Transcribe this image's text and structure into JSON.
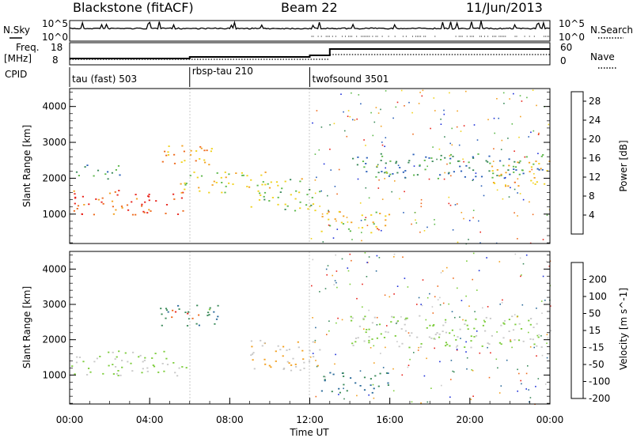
{
  "header": {
    "station": "Blackstone (fitACF)",
    "beam": "Beam 22",
    "date": "11/Jun/2013"
  },
  "strip_labels": {
    "nsky": "N.Sky",
    "nsky_tick_top": "10^5",
    "nsky_tick_bottom": "10^0",
    "nsearch": "N.Search",
    "nsearch_tick_top": "10^5",
    "nsearch_tick_bottom": "10^0",
    "freq_line1": "Freq.",
    "freq_line2": "[MHz]",
    "freq_tick_top": "18",
    "freq_tick_bottom": "8",
    "nave": "Nave",
    "nave_tick_top": "60",
    "nave_tick_bottom": "0",
    "cpid": "CPID"
  },
  "cpid_segments": [
    {
      "label": "tau (fast) 503",
      "start_hour": 0
    },
    {
      "label": "rbsp-tau 210",
      "start_hour": 6
    },
    {
      "label": "twofsound 3501",
      "start_hour": 12
    }
  ],
  "chart_data": [
    {
      "type": "heatmap",
      "title": "",
      "xlabel": "",
      "ylabel": "Slant Range [km]",
      "xlim": [
        "00:00",
        "24:00"
      ],
      "ylim": [
        180,
        4500
      ],
      "x_ticks": [
        "00:00",
        "04:00",
        "08:00",
        "12:00",
        "16:00",
        "20:00",
        "00:00"
      ],
      "y_ticks": [
        1000,
        2000,
        3000,
        4000
      ],
      "colorbar": {
        "label": "Power [dB]",
        "ticks": [
          4,
          8,
          12,
          16,
          20,
          24,
          28
        ],
        "range": [
          0,
          30
        ],
        "colors": [
          "#1a2cd8",
          "#2a5fb8",
          "#3b8a5a",
          "#5cb84a",
          "#f0d21c",
          "#f2a020",
          "#ee6a1c",
          "#e8221a"
        ]
      },
      "echo_bands": [
        {
          "t0": 0.0,
          "t1": 5.8,
          "r0": 1000,
          "r1": 1700,
          "power_db": 26
        },
        {
          "t0": 4.5,
          "t1": 7.5,
          "r0": 2400,
          "r1": 3000,
          "power_db": 20
        },
        {
          "t0": 0.2,
          "t1": 2.5,
          "r0": 2000,
          "r1": 2400,
          "power_db": 10
        },
        {
          "t0": 5.5,
          "t1": 10.0,
          "r0": 1600,
          "r1": 2200,
          "power_db": 16
        },
        {
          "t0": 9.0,
          "t1": 12.5,
          "r0": 1100,
          "r1": 2000,
          "power_db": 14
        },
        {
          "t0": 12.5,
          "t1": 16.0,
          "r0": 500,
          "r1": 1100,
          "power_db": 18
        },
        {
          "t0": 14.0,
          "t1": 24.0,
          "r0": 2000,
          "r1": 2700,
          "power_db": 9
        },
        {
          "t0": 21.0,
          "t1": 24.0,
          "r0": 1800,
          "r1": 2500,
          "power_db": 18
        }
      ]
    },
    {
      "type": "heatmap",
      "title": "",
      "xlabel": "Time UT",
      "ylabel": "Slant Range [km]",
      "xlim": [
        "00:00",
        "24:00"
      ],
      "ylim": [
        180,
        4500
      ],
      "x_ticks": [
        "00:00",
        "04:00",
        "08:00",
        "12:00",
        "16:00",
        "20:00",
        "00:00"
      ],
      "y_ticks": [
        1000,
        2000,
        3000,
        4000
      ],
      "colorbar": {
        "label": "Velocity [m s^-1]",
        "ticks": [
          200,
          100,
          50,
          15,
          -15,
          -50,
          -100,
          -200
        ],
        "range": [
          -250,
          250
        ],
        "colors": [
          "#1a2cd8",
          "#2a6a9a",
          "#3b8a5a",
          "#7ccc3a",
          "#c8c8c8",
          "#f2a020",
          "#ee6a1c",
          "#e8221a"
        ]
      },
      "echo_bands": [
        {
          "t0": 0.0,
          "t1": 5.8,
          "r0": 1000,
          "r1": 1700,
          "velocity": 0
        },
        {
          "t0": 4.5,
          "t1": 7.5,
          "r0": 2400,
          "r1": 3000,
          "velocity": -100
        },
        {
          "t0": 5.0,
          "t1": 6.5,
          "r0": 2600,
          "r1": 2900,
          "velocity": 200
        },
        {
          "t0": 9.0,
          "t1": 12.5,
          "r0": 1100,
          "r1": 2000,
          "velocity": 60
        },
        {
          "t0": 12.5,
          "t1": 16.0,
          "r0": 500,
          "r1": 1100,
          "velocity": -120
        },
        {
          "t0": 14.0,
          "t1": 24.0,
          "r0": 1800,
          "r1": 2700,
          "velocity": 0
        }
      ]
    }
  ]
}
